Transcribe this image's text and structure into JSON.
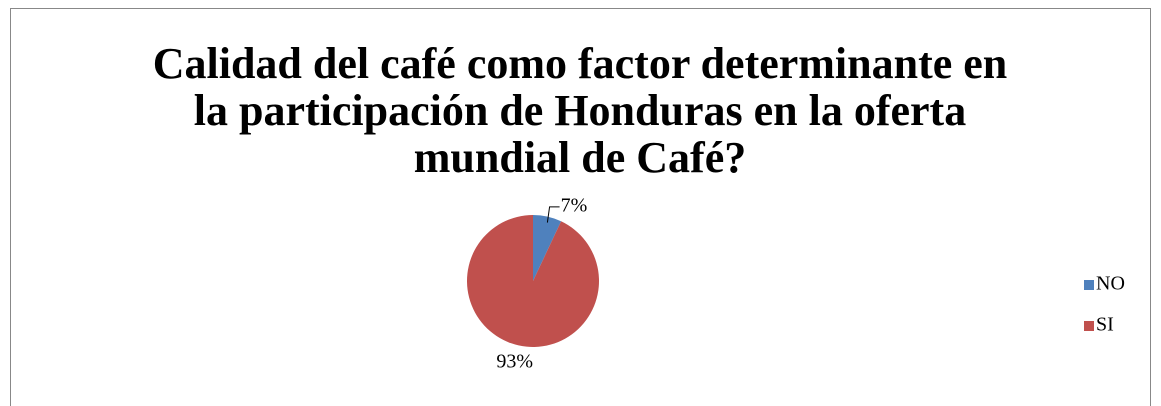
{
  "chart_data": {
    "type": "pie",
    "title": "Calidad del café como factor determinante en la participación de Honduras en la oferta mundial de Café?",
    "categories": [
      "NO",
      "SI"
    ],
    "values": [
      7,
      93
    ],
    "value_labels": [
      "7%",
      "93%"
    ],
    "colors": [
      "#4f81bd",
      "#c0504d"
    ],
    "legend": "right"
  }
}
